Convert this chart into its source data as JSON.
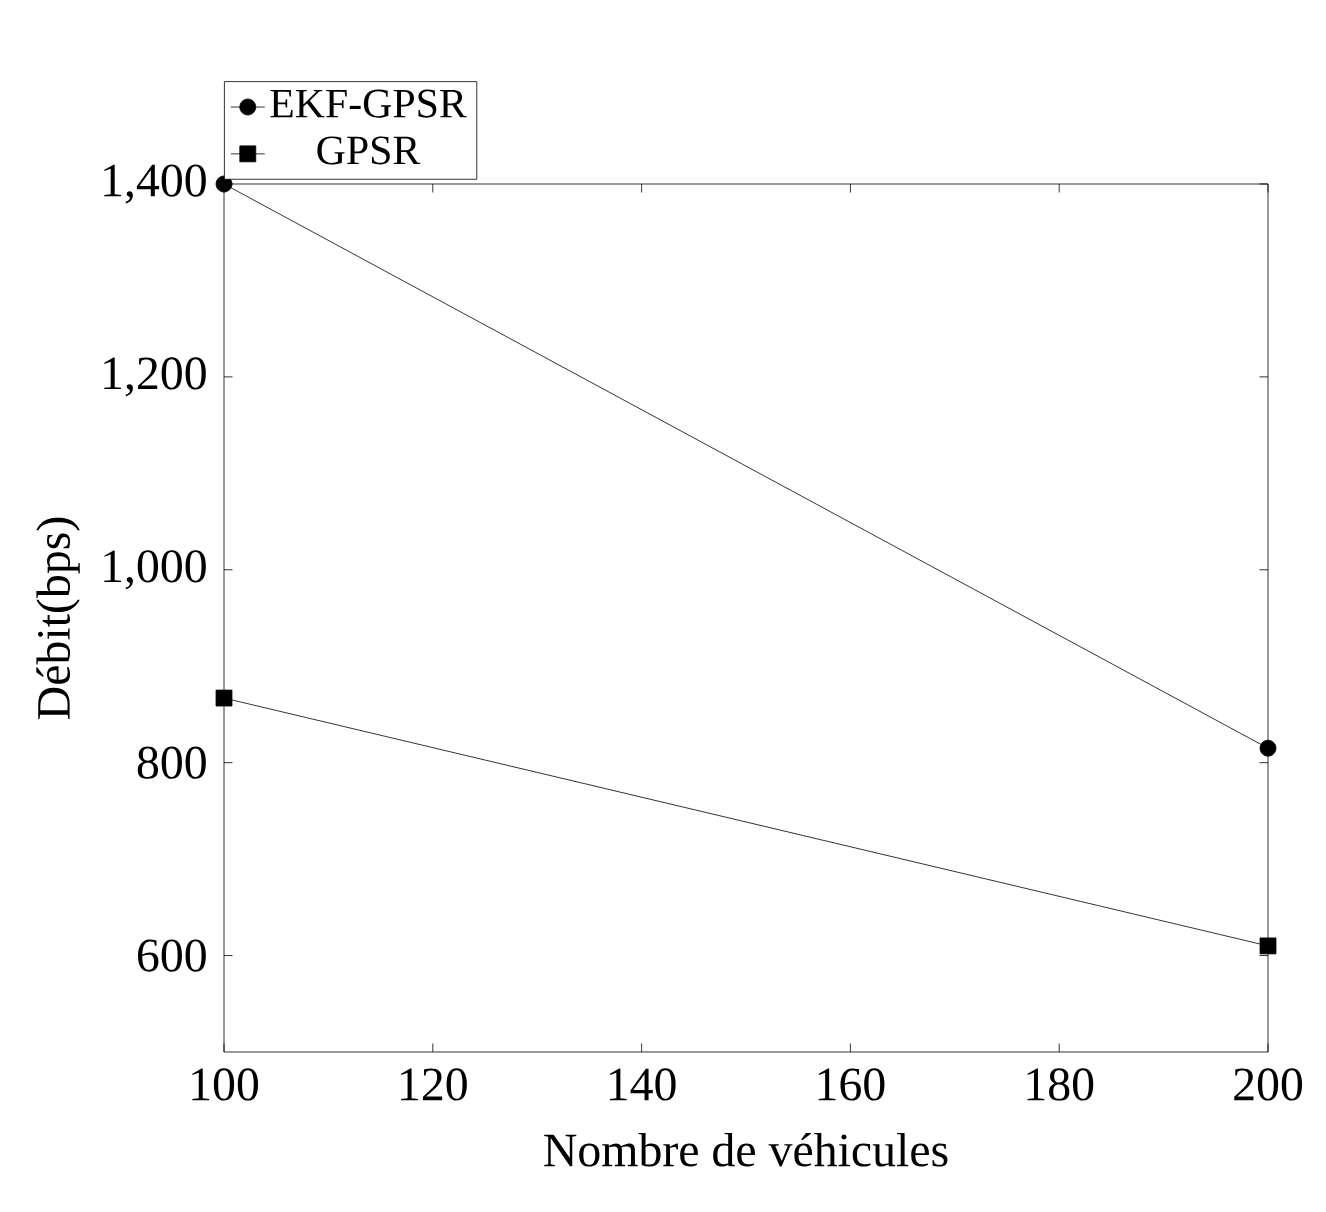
{
  "chart_data": {
    "type": "line",
    "xlabel": "Nombre de véhicules",
    "ylabel": "Débit(bps)",
    "x": [
      100,
      200
    ],
    "series": [
      {
        "name": "EKF-GPSR",
        "color": "#000000",
        "values": [
          1400,
          815
        ],
        "marker": "circle"
      },
      {
        "name": "GPSR",
        "color": "#000000",
        "values": [
          867,
          610
        ],
        "marker": "square"
      }
    ],
    "xlim": [
      100,
      200
    ],
    "xticks": [
      100,
      120,
      140,
      160,
      180,
      200
    ],
    "ylim": [
      500,
      1400
    ],
    "yticks": [
      600,
      800,
      {
        "value": 1000,
        "label": "1,000"
      },
      {
        "value": 1200,
        "label": "1,200"
      },
      {
        "value": 1400,
        "label": "1,400"
      }
    ],
    "legend": "top left",
    "line_style": "solid"
  }
}
